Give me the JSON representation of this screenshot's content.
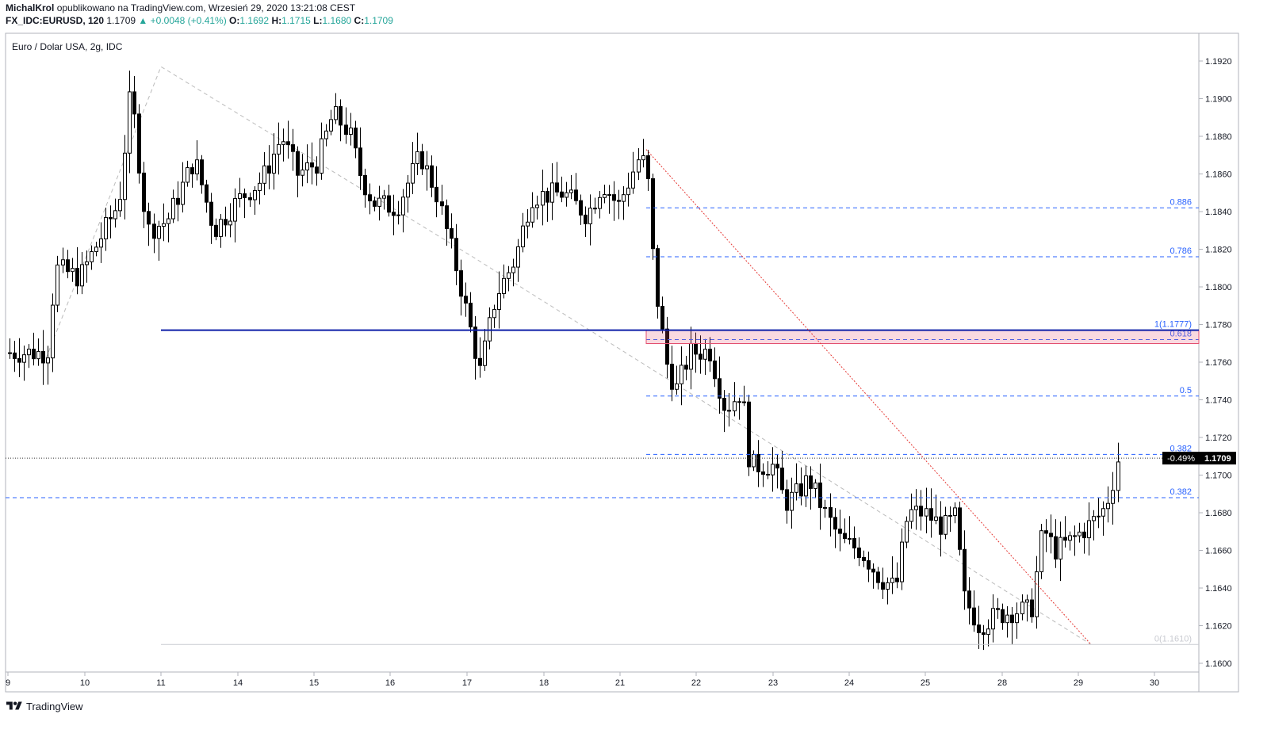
{
  "header": {
    "author": "MichalKrol",
    "published": "opublikowano na TradingView.com, Wrzesień 29, 2020 13:21:08 CEST",
    "symbol": "FX_IDC:EURUSD, 120",
    "last": "1.1709",
    "change": "▲ +0.0048 (+0.41%)",
    "o_label": "O:",
    "o_value": "1.1692",
    "h_label": "H:",
    "h_value": "1.1715",
    "l_label": "L:",
    "l_value": "1.1680",
    "c_label": "C:",
    "c_value": "1.1709"
  },
  "footer": {
    "brand": "TradingView",
    "logo_icon": "tradingview-logo-icon"
  },
  "chart_data": {
    "type": "candlestick",
    "title": "Euro / Dolar USA, 2g, IDC",
    "y_range": [
      1.1592,
      1.1952
    ],
    "y_ticks": [
      "1.1920",
      "1.1900",
      "1.1880",
      "1.1860",
      "1.1840",
      "1.1820",
      "1.1800",
      "1.1780",
      "1.1760",
      "1.1740",
      "1.1720",
      "1.1700",
      "1.1680",
      "1.1660",
      "1.1640",
      "1.1620",
      "1.1600"
    ],
    "x_ticks": [
      "9",
      "10",
      "11",
      "14",
      "15",
      "16",
      "17",
      "18",
      "21",
      "22",
      "23",
      "24",
      "25",
      "28",
      "29",
      "30"
    ],
    "current_price": "1.1709",
    "current_change": "-0.49%",
    "horizontal_line": {
      "price": 1.1777,
      "color": "#0d1fa8"
    },
    "fib_levels": [
      {
        "label": "0.886",
        "price": 1.1842
      },
      {
        "label": "0.786",
        "price": 1.1816
      },
      {
        "label": "1(1.1777)",
        "price": 1.1777
      },
      {
        "label": "0.618",
        "price": 1.1772
      },
      {
        "label": "0.5",
        "price": 1.1742
      },
      {
        "label": "0.382",
        "price": 1.1711
      },
      {
        "label": "0.382",
        "price": 1.1688
      },
      {
        "label": "0(1.1610)",
        "price": 1.161
      }
    ],
    "zone": {
      "top": 1.1777,
      "bottom": 1.1772,
      "color": "#e35070"
    },
    "trendline_red": {
      "from": [
        "21",
        1.1873
      ],
      "to": [
        "29",
        1.161
      ]
    },
    "colors": {
      "up": "#ffffff",
      "down": "#000000",
      "fib": "#2962ff",
      "trend": "#e53935",
      "zigzag": "#bbbbbb"
    }
  }
}
